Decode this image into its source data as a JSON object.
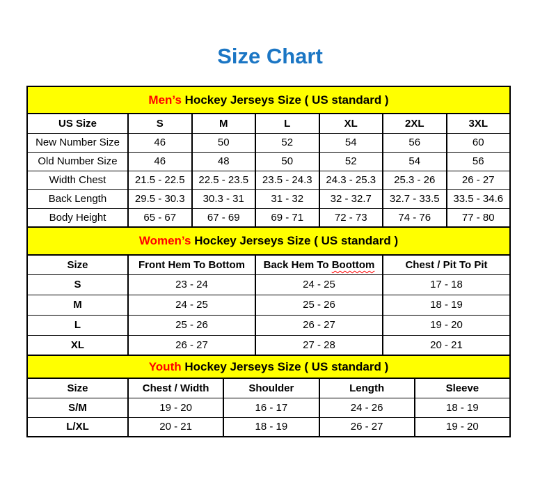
{
  "page": {
    "title": "Size Chart"
  },
  "colors": {
    "title_blue": "#1B76C4",
    "band_yellow": "#FFFF00",
    "accent_red": "#FF0000",
    "border_black": "#000000",
    "background": "#FFFFFF"
  },
  "chart_data": [
    {
      "type": "table",
      "title_highlight": "Men’s",
      "title_rest": " Hockey Jerseys Size ( US standard )",
      "columns": [
        "US Size",
        "S",
        "M",
        "L",
        "XL",
        "2XL",
        "3XL"
      ],
      "rows": [
        {
          "label": "New Number Size",
          "values": [
            "46",
            "50",
            "52",
            "54",
            "56",
            "60"
          ]
        },
        {
          "label": "Old Number Size",
          "values": [
            "46",
            "48",
            "50",
            "52",
            "54",
            "56"
          ]
        },
        {
          "label": "Width Chest",
          "values": [
            "21.5 - 22.5",
            "22.5 - 23.5",
            "23.5 - 24.3",
            "24.3 - 25.3",
            "25.3 - 26",
            "26 - 27"
          ]
        },
        {
          "label": "Back Length",
          "values": [
            "29.5 - 30.3",
            "30.3 - 31",
            "31 - 32",
            "32 - 32.7",
            "32.7 - 33.5",
            "33.5 - 34.6"
          ]
        },
        {
          "label": "Body Height",
          "values": [
            "65 - 67",
            "67 - 69",
            "69 - 71",
            "72 - 73",
            "74 - 76",
            "77 - 80"
          ]
        }
      ]
    },
    {
      "type": "table",
      "title_highlight": "Women’s",
      "title_rest": " Hockey Jerseys Size ( US standard )",
      "columns": [
        "Size",
        "Front Hem To Bottom",
        "Back Hem To Boottom",
        "Chest / Pit To Pit"
      ],
      "column2_prefix": "Back Hem To ",
      "column2_misspelled_word": "Boottom",
      "rows": [
        {
          "label": "S",
          "values": [
            "23 - 24",
            "24 - 25",
            "17 - 18"
          ]
        },
        {
          "label": "M",
          "values": [
            "24 - 25",
            "25 - 26",
            "18 - 19"
          ]
        },
        {
          "label": "L",
          "values": [
            "25 - 26",
            "26 - 27",
            "19 - 20"
          ]
        },
        {
          "label": "XL",
          "values": [
            "26 - 27",
            "27 - 28",
            "20 - 21"
          ]
        }
      ]
    },
    {
      "type": "table",
      "title_highlight": "Youth",
      "title_rest": " Hockey Jerseys Size ( US standard )",
      "columns": [
        "Size",
        "Chest / Width",
        "Shoulder",
        "Length",
        "Sleeve"
      ],
      "rows": [
        {
          "label": "S/M",
          "values": [
            "19 - 20",
            "16 - 17",
            "24 - 26",
            "18 - 19"
          ]
        },
        {
          "label": "L/XL",
          "values": [
            "20 - 21",
            "18 - 19",
            "26 - 27",
            "19 - 20"
          ]
        }
      ]
    }
  ]
}
